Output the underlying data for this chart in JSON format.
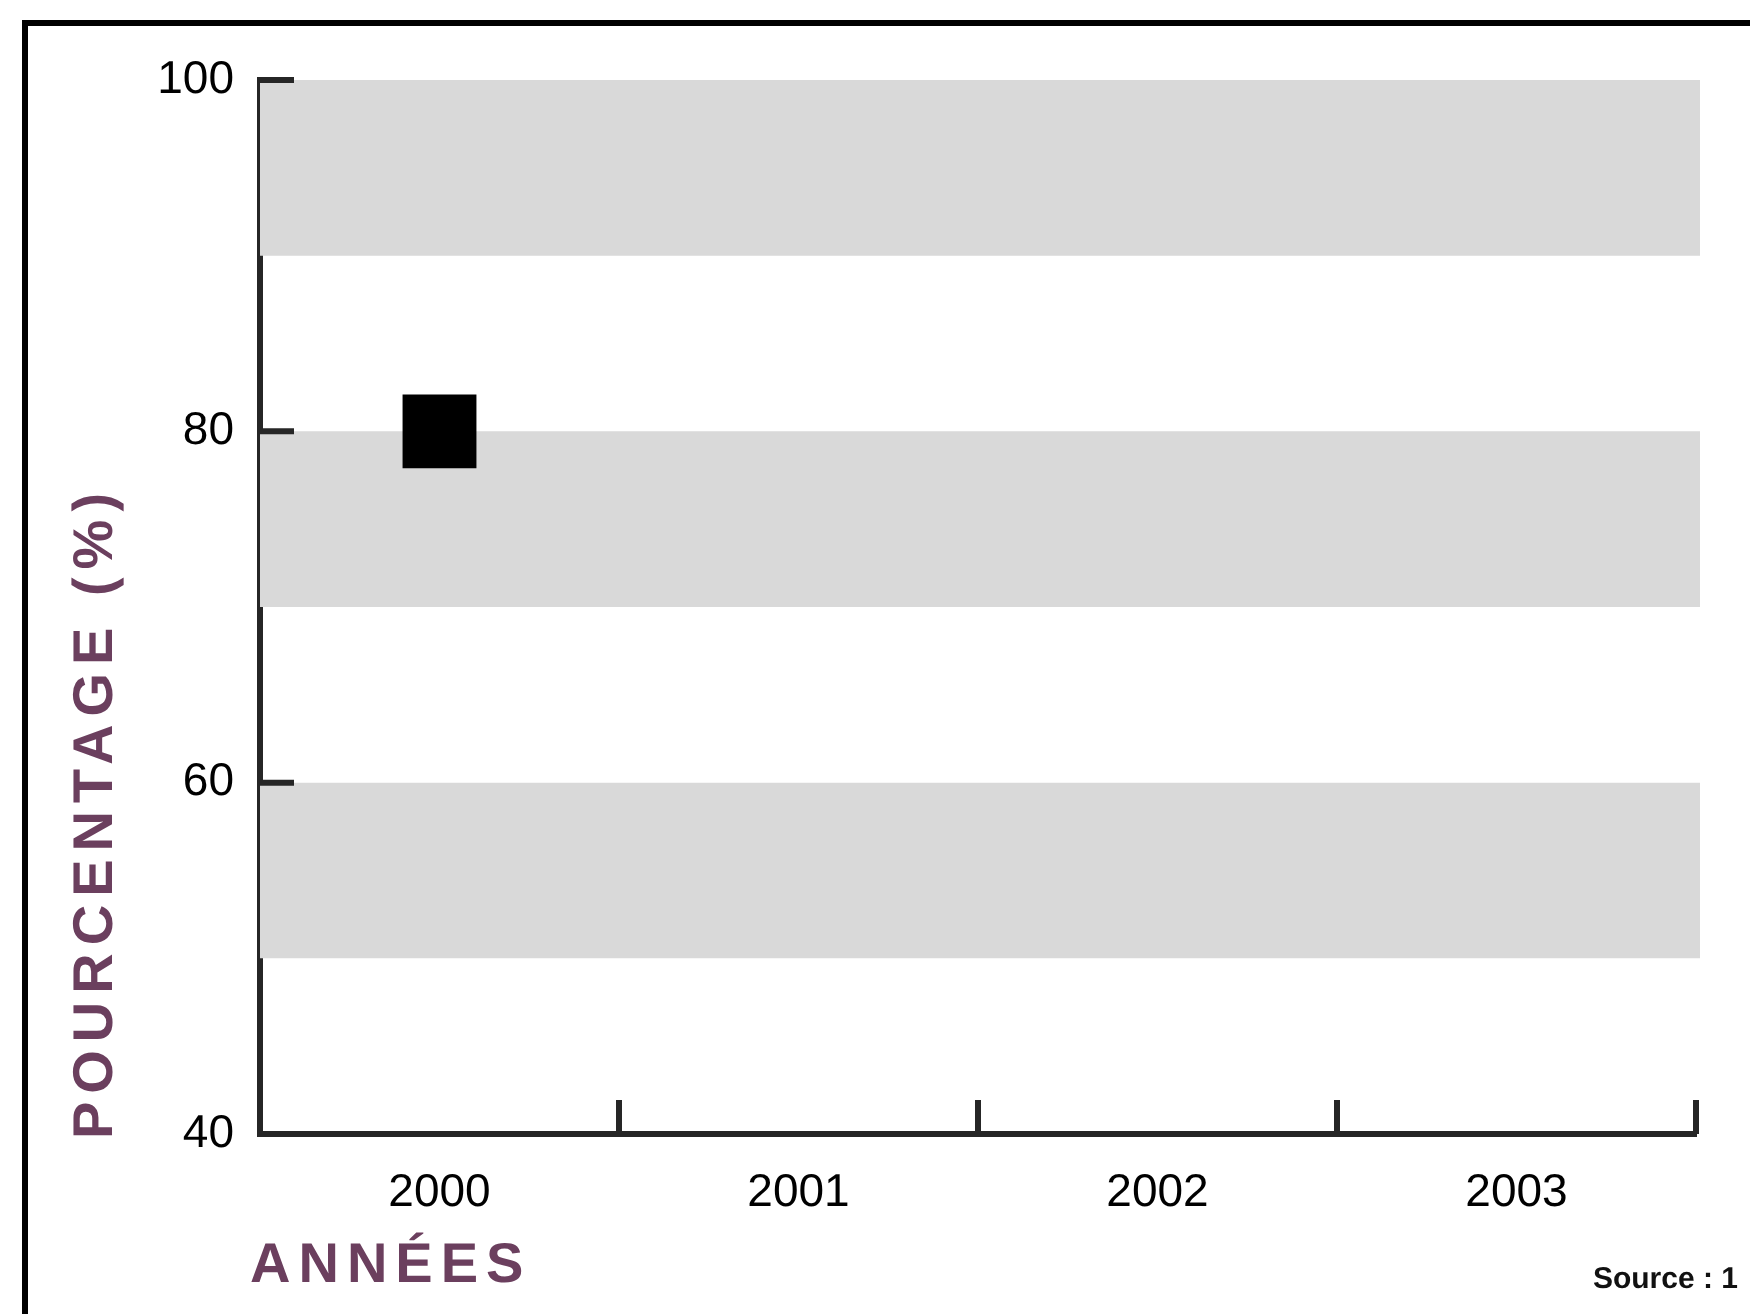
{
  "chart_data": {
    "type": "line",
    "xlabel": "ANNÉES",
    "ylabel": "POURCENTAGE (%)",
    "annotations": [
      "Source : 1"
    ],
    "categories": [
      "2000",
      "2001",
      "2002",
      "2003"
    ],
    "series": [
      {
        "color": "#000000",
        "values": [
          80,
          null,
          null,
          null
        ]
      }
    ],
    "ylim": [
      40,
      100
    ],
    "yticks": [
      40,
      60,
      80,
      100
    ],
    "bands": [
      {
        "axis": "y",
        "from": 90,
        "to": 100,
        "color": "#d9d9d9"
      },
      {
        "axis": "y",
        "from": 70,
        "to": 80,
        "color": "#d9d9d9"
      },
      {
        "axis": "y",
        "from": 50,
        "to": 60,
        "color": "#d9d9d9"
      }
    ],
    "marker": "square",
    "grid": false,
    "legend": false
  }
}
